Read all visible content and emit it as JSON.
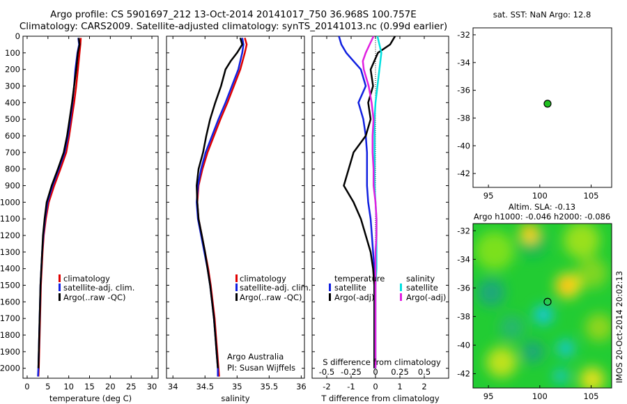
{
  "title_line1": "Argo profile: CS 5901697_212 13-Oct-2014 20141017_750 36.968S 100.757E",
  "title_line2": "Climatology: CARS2009. Satellite-adjusted climatology: synTS_20141013.nc (0.99d earlier)",
  "sst_title": "sat. SST: NaN Argo: 12.8",
  "sla_title1": "Altim. SLA: -0.13",
  "sla_title2": "Argo h1000: -0.046 h2000: -0.086",
  "watermark": "IMOS 20-Oct-2014 20:02:13",
  "credit_line1": "Argo Australia",
  "credit_line2": "PI: Susan Wijffels",
  "colors": {
    "climatology": "#e00000",
    "satellite": "#1020e0",
    "argo": "#000000",
    "sat_salinity": "#00e0e0",
    "argo_salinity": "#e020e0",
    "argo_dot": "#20c020"
  },
  "chart_data": [
    {
      "type": "line",
      "xlabel": "temperature (deg C)",
      "ylabel": "",
      "xlim": [
        -1,
        31.5
      ],
      "ylim": [
        0,
        2060
      ],
      "xticks": [
        0,
        5,
        10,
        15,
        20,
        25,
        30
      ],
      "yticks": [
        0,
        100,
        200,
        300,
        400,
        500,
        600,
        700,
        800,
        900,
        1000,
        1100,
        1200,
        1300,
        1400,
        1500,
        1600,
        1700,
        1800,
        1900,
        2000
      ],
      "legend": [
        "climatology",
        "satellite-adj. clim.",
        "Argo(..raw -QC)"
      ],
      "series": [
        {
          "name": "climatology",
          "depth": [
            10,
            50,
            100,
            200,
            300,
            400,
            500,
            600,
            700,
            800,
            900,
            1000,
            1100,
            1200,
            1300,
            1400,
            1500,
            1600,
            1700,
            1800,
            1900,
            2000,
            2050
          ],
          "values": [
            12.9,
            12.8,
            12.6,
            12.2,
            11.8,
            11.3,
            10.7,
            10.1,
            9.4,
            8.0,
            6.5,
            5.2,
            4.5,
            4.0,
            3.7,
            3.5,
            3.3,
            3.2,
            3.1,
            3.0,
            2.9,
            2.8,
            2.7
          ]
        },
        {
          "name": "satellite-adj. clim.",
          "depth": [
            10,
            50,
            100,
            200,
            300,
            400,
            500,
            600,
            700,
            800,
            900,
            1000,
            1100,
            1200,
            1300,
            1400,
            1500,
            1600,
            1700,
            1800,
            1900,
            2000,
            2050
          ],
          "values": [
            12.3,
            12.5,
            12.1,
            11.6,
            11.3,
            10.9,
            10.4,
            9.8,
            9.0,
            7.6,
            6.1,
            4.9,
            4.3,
            3.9,
            3.6,
            3.4,
            3.2,
            3.1,
            3.0,
            2.9,
            2.8,
            2.7,
            2.6
          ]
        },
        {
          "name": "Argo(..raw -QC)",
          "depth": [
            10,
            50,
            100,
            200,
            300,
            400,
            500,
            600,
            700,
            800,
            900,
            1000,
            1100,
            1200,
            1300,
            1400,
            1500,
            1600,
            1700,
            1800,
            1900,
            2000
          ],
          "values": [
            12.4,
            12.6,
            12.2,
            11.8,
            11.3,
            10.8,
            10.2,
            9.6,
            8.8,
            7.4,
            5.9,
            4.7,
            4.2,
            3.8,
            3.6,
            3.4,
            3.2,
            3.1,
            3.0,
            2.9,
            2.8,
            2.7
          ]
        }
      ]
    },
    {
      "type": "line",
      "xlabel": "salinity",
      "ylabel": "",
      "xlim": [
        33.9,
        36.05
      ],
      "ylim": [
        0,
        2060
      ],
      "xticks": [
        34,
        34.5,
        35,
        35.5,
        36
      ],
      "legend": [
        "climatology",
        "satellite-adj. clim.",
        "Argo(..raw -QC)"
      ],
      "series": [
        {
          "name": "climatology",
          "depth": [
            10,
            50,
            100,
            200,
            300,
            400,
            500,
            600,
            700,
            800,
            900,
            1000,
            1100,
            1200,
            1300,
            1400,
            1500,
            1600,
            1700,
            1800,
            1900,
            2000,
            2050
          ],
          "values": [
            35.12,
            35.15,
            35.12,
            35.05,
            34.95,
            34.85,
            34.74,
            34.64,
            34.54,
            34.46,
            34.4,
            34.38,
            34.4,
            34.45,
            34.5,
            34.55,
            34.59,
            34.62,
            34.65,
            34.67,
            34.69,
            34.71,
            34.72
          ]
        },
        {
          "name": "satellite-adj. clim.",
          "depth": [
            10,
            50,
            100,
            200,
            300,
            400,
            500,
            600,
            700,
            800,
            900,
            1000,
            1100,
            1200,
            1300,
            1400,
            1500,
            1600,
            1700,
            1800,
            1900,
            2000,
            2050
          ],
          "values": [
            35.08,
            35.1,
            35.08,
            35.02,
            34.92,
            34.82,
            34.71,
            34.61,
            34.51,
            34.44,
            34.39,
            34.37,
            34.39,
            34.44,
            34.49,
            34.54,
            34.58,
            34.61,
            34.64,
            34.66,
            34.68,
            34.7,
            34.7
          ]
        },
        {
          "name": "Argo(..raw -QC)",
          "depth": [
            10,
            50,
            100,
            150,
            200,
            300,
            400,
            500,
            600,
            700,
            800,
            900,
            1000,
            1100,
            1200,
            1300,
            1400,
            1500,
            1600,
            1700,
            1800,
            1900,
            2000
          ],
          "values": [
            35.05,
            35.08,
            35.0,
            34.9,
            34.82,
            34.75,
            34.66,
            34.58,
            34.52,
            34.47,
            34.4,
            34.37,
            34.38,
            34.4,
            34.45,
            34.5,
            34.54,
            34.58,
            34.61,
            34.64,
            34.66,
            34.68,
            34.7
          ]
        }
      ]
    },
    {
      "type": "line",
      "xlabel": "T difference from climatology",
      "xlabel2": "S difference from climatology",
      "xlim": [
        -2.6,
        3.0
      ],
      "xticks": [
        -2,
        -1,
        0,
        1,
        2
      ],
      "xticks_top": [
        "-0.5",
        "-0.25",
        "0",
        "0.25",
        "0.5"
      ],
      "ylim": [
        0,
        2060
      ],
      "legend_header": [
        "temperature",
        "salinity"
      ],
      "legend": [
        "satellite",
        "Argo(-adj)",
        "satellite",
        "Argo(-adj)"
      ],
      "series": [
        {
          "name": "temperature satellite",
          "depth": [
            0,
            50,
            100,
            150,
            200,
            300,
            400,
            500,
            600,
            700,
            800,
            900,
            1000,
            1100,
            1200,
            1300,
            1400,
            1500,
            1600,
            1700,
            1800,
            1900,
            2000
          ],
          "values": [
            -1.5,
            -1.4,
            -1.2,
            -0.9,
            -0.6,
            -0.4,
            -0.7,
            -0.5,
            -0.4,
            -0.35,
            -0.35,
            -0.35,
            -0.3,
            -0.2,
            -0.15,
            -0.1,
            -0.05,
            -0.05,
            -0.05,
            -0.05,
            -0.05,
            -0.05,
            -0.05
          ]
        },
        {
          "name": "temperature Argo(-adj)",
          "depth": [
            0,
            50,
            100,
            200,
            300,
            400,
            500,
            600,
            700,
            800,
            900,
            1000,
            1100,
            1200,
            1300,
            1400,
            1500,
            1600,
            1700,
            1800,
            1900,
            2000
          ],
          "values": [
            0.8,
            0.6,
            0.1,
            -0.2,
            -0.1,
            -0.3,
            -0.2,
            -0.4,
            -0.9,
            -1.1,
            -1.3,
            -0.9,
            -0.6,
            -0.4,
            -0.2,
            -0.1,
            -0.05,
            -0.05,
            -0.05,
            -0.05,
            -0.05,
            -0.05
          ]
        },
        {
          "name": "salinity satellite",
          "depth": [
            0,
            50,
            100,
            200,
            300,
            400,
            500,
            600,
            700,
            800,
            900,
            1000,
            1100,
            1200,
            1300,
            1400,
            1500,
            1600,
            1700,
            1800,
            1900,
            2000
          ],
          "values": [
            0.02,
            0.04,
            0.06,
            0.04,
            0.02,
            0.0,
            -0.01,
            -0.01,
            -0.01,
            -0.01,
            -0.01,
            0.0,
            0.01,
            0.01,
            0.01,
            0.01,
            0.0,
            0.0,
            0.0,
            0.0,
            0.0,
            0.0
          ]
        },
        {
          "name": "salinity Argo(-adj)",
          "depth": [
            0,
            50,
            100,
            150,
            200,
            300,
            400,
            500,
            600,
            700,
            800,
            900,
            1000,
            1100,
            1200,
            1300,
            1400,
            1500,
            1600,
            1700,
            1800,
            1900,
            2000
          ],
          "values": [
            -0.02,
            -0.06,
            -0.1,
            -0.13,
            -0.12,
            -0.07,
            -0.04,
            -0.02,
            -0.03,
            -0.03,
            -0.02,
            -0.02,
            0.0,
            0.01,
            0.01,
            0.0,
            0.0,
            0.0,
            0.0,
            0.0,
            0.0,
            0.0,
            0.0
          ]
        }
      ]
    },
    {
      "type": "scatter",
      "title": "sat. SST: NaN Argo: 12.8",
      "xlim": [
        93.5,
        107
      ],
      "ylim": [
        -43,
        -31.5
      ],
      "xticks": [
        95,
        100,
        105
      ],
      "yticks": [
        -32,
        -34,
        -36,
        -38,
        -40,
        -42
      ],
      "points": [
        {
          "x": 100.757,
          "y": -36.968
        }
      ]
    },
    {
      "type": "heatmap",
      "title": "Altim. SLA: -0.13",
      "subtitle": "Argo h1000: -0.046 h2000: -0.086",
      "xlim": [
        93.5,
        107
      ],
      "ylim": [
        -43,
        -31.5
      ],
      "xticks": [
        95,
        100,
        105
      ],
      "yticks": [
        -32,
        -34,
        -36,
        -38,
        -40,
        -42
      ],
      "points": [
        {
          "x": 100.757,
          "y": -36.968
        }
      ]
    }
  ]
}
